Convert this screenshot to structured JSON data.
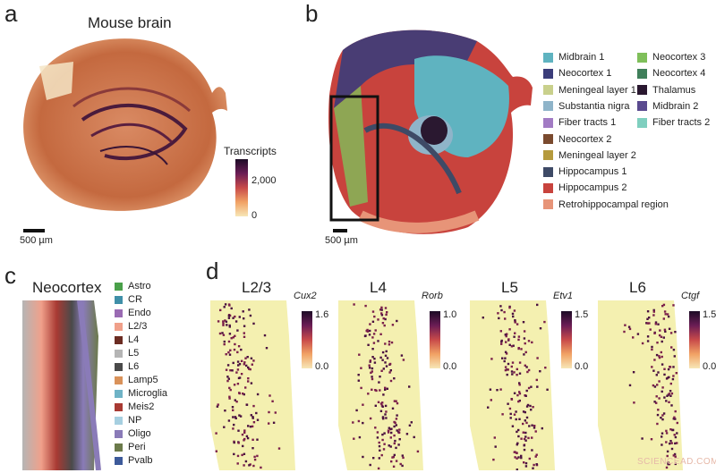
{
  "panels": {
    "a": {
      "label": "a",
      "title": "Mouse brain",
      "scale": "500 µm",
      "colorbar": {
        "title": "Transcripts",
        "max": "2,000",
        "min": "0"
      }
    },
    "b": {
      "label": "b",
      "scale": "500 µm",
      "legend": [
        {
          "name": "Midbrain 1",
          "color": "#5fb3c0"
        },
        {
          "name": "Neocortex 1",
          "color": "#3b3d7a"
        },
        {
          "name": "Meningeal layer 1",
          "color": "#c9d08c"
        },
        {
          "name": "Substantia nigra",
          "color": "#8fb4c9"
        },
        {
          "name": "Fiber tracts 1",
          "color": "#a27bc4"
        },
        {
          "name": "Neocortex 2",
          "color": "#7a4a2e"
        },
        {
          "name": "Meningeal layer 2",
          "color": "#b59a3d"
        },
        {
          "name": "Hippocampus 1",
          "color": "#3e4a66"
        },
        {
          "name": "Hippocampus 2",
          "color": "#c8433d"
        },
        {
          "name": "Retrohippocampal region",
          "color": "#e79478"
        },
        {
          "name": "Neocortex 3",
          "color": "#7fbf5a"
        },
        {
          "name": "Neocortex 4",
          "color": "#3f7f5a"
        },
        {
          "name": "Thalamus",
          "color": "#2a1830"
        },
        {
          "name": "Midbrain 2",
          "color": "#5a4a8f"
        },
        {
          "name": "Fiber tracts 2",
          "color": "#7fcfbf"
        }
      ]
    },
    "c": {
      "label": "c",
      "title": "Neocortex",
      "legend": [
        {
          "name": "Astro",
          "color": "#4aa04a"
        },
        {
          "name": "CR",
          "color": "#3f8fa8"
        },
        {
          "name": "Endo",
          "color": "#9a6bb3"
        },
        {
          "name": "L2/3",
          "color": "#f0a08a"
        },
        {
          "name": "L4",
          "color": "#6b2c22"
        },
        {
          "name": "L5",
          "color": "#b5b5b5"
        },
        {
          "name": "L6",
          "color": "#4a4a4a"
        },
        {
          "name": "Lamp5",
          "color": "#d9925a"
        },
        {
          "name": "Microglia",
          "color": "#6fb3c6"
        },
        {
          "name": "Meis2",
          "color": "#a83a33"
        },
        {
          "name": "NP",
          "color": "#a6cfe0"
        },
        {
          "name": "Oligo",
          "color": "#8a7bb8"
        },
        {
          "name": "Peri",
          "color": "#6b7a4a"
        },
        {
          "name": "Pvalb",
          "color": "#3d5a9a"
        }
      ]
    },
    "d": {
      "label": "d",
      "maps": [
        {
          "layer": "L2/3",
          "gene": "Cux2",
          "max": "1.6",
          "min": "0.0"
        },
        {
          "layer": "L4",
          "gene": "Rorb",
          "max": "1.0",
          "min": "0.0"
        },
        {
          "layer": "L5",
          "gene": "Etv1",
          "max": "1.5",
          "min": "0.0"
        },
        {
          "layer": "L6",
          "gene": "Ctgf",
          "max": "1.5",
          "min": "0.0"
        }
      ]
    }
  },
  "watermark": "SCIENCEAD.COM"
}
